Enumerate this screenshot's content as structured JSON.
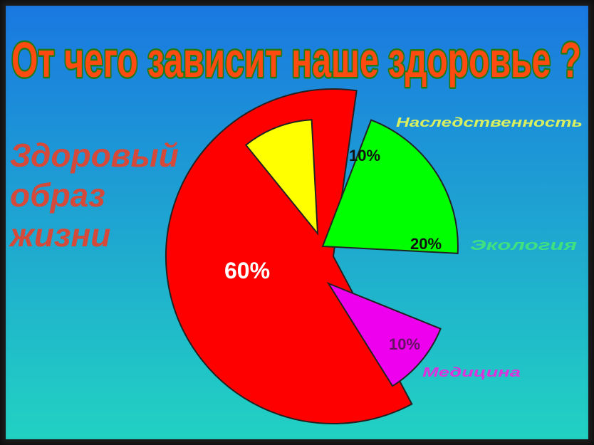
{
  "slide": {
    "title": "От чего зависит наше здоровье ?"
  },
  "chart_data": {
    "type": "pie",
    "title": "От чего зависит наше здоровье ?",
    "slices": [
      {
        "label": "Здоровый образ жизни",
        "label_lines": [
          "Здоровый",
          "образ",
          "жизни"
        ],
        "value": 60,
        "value_label": "60%",
        "color": "#ff0000",
        "label_color": "#d4493a"
      },
      {
        "label": "Наследственность",
        "label_lines": [
          "Наследственность"
        ],
        "value": 10,
        "value_label": "10%",
        "color": "#ffff00",
        "label_color": "#d8f060"
      },
      {
        "label": "Экология",
        "label_lines": [
          "Экология"
        ],
        "value": 20,
        "value_label": "20%",
        "color": "#00ff00",
        "label_color": "#3ee080"
      },
      {
        "label": "Медицина",
        "label_lines": [
          "Медицина"
        ],
        "value": 10,
        "value_label": "10%",
        "color": "#ee00ee",
        "label_color": "#dd33dd"
      }
    ]
  },
  "colors": {
    "background_top": "#1a78e0",
    "background_bottom": "#22d2c2",
    "title_fill": "#ff4a10",
    "title_outline": "#1f7a1a"
  }
}
